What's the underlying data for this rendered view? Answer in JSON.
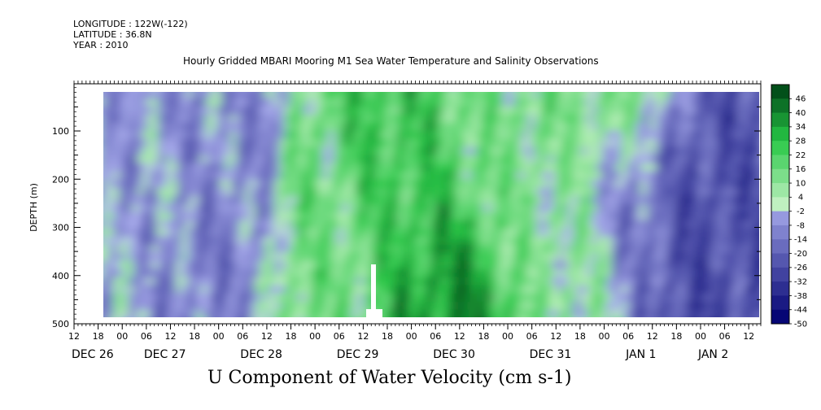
{
  "header": {
    "longitude": "LONGITUDE : 122W(-122)",
    "latitude": "LATITUDE : 36.8N",
    "year": "YEAR : 2010"
  },
  "subtitle": "Hourly Gridded MBARI Mooring M1 Sea Water Temperature and Salinity Observations",
  "title": "U Component of Water Velocity (cm s-1)",
  "chart_data": {
    "type": "heatmap",
    "title": "U Component of Water Velocity (cm s-1)",
    "ylabel": "DEPTH (m)",
    "xlabel": "",
    "y_reversed": true,
    "ylim": [
      0,
      500
    ],
    "xlim_hours": [
      -12,
      159
    ],
    "y_ticks": [
      "100",
      "200",
      "300",
      "400",
      "500"
    ],
    "y_tick_values": [
      100,
      200,
      300,
      400,
      500
    ],
    "x_hour_ticks": [
      "12",
      "18",
      "00",
      "06",
      "12",
      "18",
      "00",
      "06",
      "12",
      "18",
      "00",
      "06",
      "12",
      "18",
      "00",
      "06",
      "12",
      "18",
      "00",
      "06",
      "12",
      "18",
      "00",
      "06",
      "12",
      "18",
      "00",
      "06",
      "12"
    ],
    "x_hour_values": [
      -12,
      -6,
      0,
      6,
      12,
      18,
      24,
      30,
      36,
      42,
      48,
      54,
      60,
      66,
      72,
      78,
      84,
      90,
      96,
      102,
      108,
      114,
      120,
      126,
      132,
      138,
      144,
      150,
      156
    ],
    "x_day_labels": [
      "DEC 26",
      "DEC 27",
      "DEC 28",
      "DEC 29",
      "DEC 30",
      "DEC 31",
      "JAN  1",
      "JAN  2"
    ],
    "x_day_values": [
      -12,
      6,
      30,
      54,
      78,
      102,
      126,
      144
    ],
    "data_extent": {
      "x_start_hour": -5,
      "x_end_hour": 159,
      "depth_top": 15,
      "depth_bottom": 485
    },
    "colorbar_levels": [
      "46",
      "40",
      "34",
      "28",
      "22",
      "16",
      "10",
      "4",
      "-2",
      "-8",
      "-14",
      "-20",
      "-26",
      "-32",
      "-38",
      "-44",
      "-50"
    ],
    "colorbar_values": [
      46,
      40,
      34,
      28,
      22,
      16,
      10,
      4,
      -2,
      -8,
      -14,
      -20,
      -26,
      -32,
      -38,
      -44,
      -50
    ],
    "color_scale": {
      "min": -50,
      "max": 49,
      "low_color": "#000070",
      "mid_low": "#b0b4f2",
      "mid_high": "#bff0c0",
      "high_color": "#004a18"
    },
    "regions_description_values": [
      {
        "hour_center": 4,
        "depth_center": 220,
        "value": -6
      },
      {
        "hour_center": 14,
        "depth_center": 130,
        "value": -10
      },
      {
        "hour_center": 22,
        "depth_center": 320,
        "value": -12
      },
      {
        "hour_center": 52,
        "depth_center": 360,
        "value": 14
      },
      {
        "hour_center": 72,
        "depth_center": 250,
        "value": 24
      },
      {
        "hour_center": 80,
        "depth_center": 400,
        "value": 36
      },
      {
        "hour_center": 96,
        "depth_center": 200,
        "value": 12
      },
      {
        "hour_center": 108,
        "depth_center": 300,
        "value": 8
      },
      {
        "hour_center": 128,
        "depth_center": 200,
        "value": -16
      },
      {
        "hour_center": 144,
        "depth_center": 250,
        "value": -28
      },
      {
        "hour_center": 150,
        "depth_center": 180,
        "value": -24
      },
      {
        "hour_center": 122,
        "depth_center": 60,
        "value": 14
      }
    ]
  }
}
